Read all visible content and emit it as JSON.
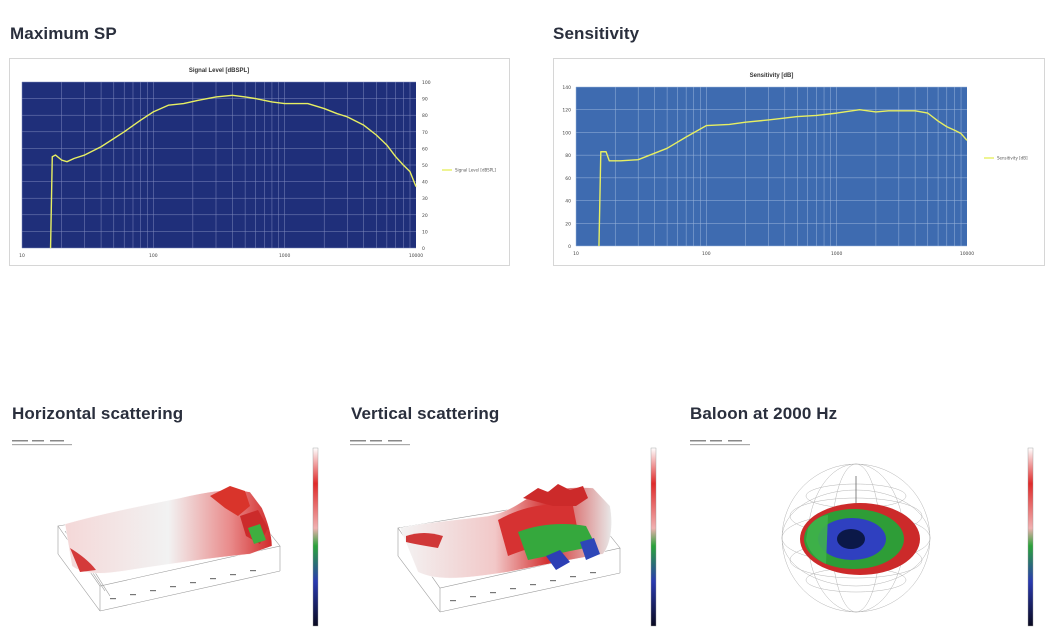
{
  "sections": {
    "max_sp": "Maximum SP",
    "sensitivity": "Sensitivity",
    "horizontal": "Horizontal scattering",
    "vertical": "Vertical scattering",
    "balloon": "Baloon at 2000 Hz"
  },
  "chart_data": [
    {
      "type": "line",
      "title": "Signal Level [dBSPL]",
      "legend": "Signal Level [dBSPL]",
      "legend_position": "right",
      "x_scale": "log",
      "xlim": [
        10,
        10000
      ],
      "x_ticks": [
        "10",
        "100",
        "1000",
        "10000"
      ],
      "ylim": [
        0,
        100
      ],
      "y_ticks": [
        "0",
        "10",
        "20",
        "30",
        "40",
        "50",
        "60",
        "70",
        "80",
        "90",
        "100"
      ],
      "grid": true,
      "colors": {
        "plot_bg": "#1f2f7a",
        "grid": "#7f89bd",
        "line": "#e7ef62"
      },
      "series": [
        {
          "name": "Signal Level [dBSPL]",
          "x": [
            16.5,
            17,
            18,
            20,
            22,
            25,
            30,
            40,
            60,
            80,
            100,
            130,
            170,
            220,
            300,
            400,
            500,
            600,
            800,
            1000,
            1500,
            2000,
            2500,
            3000,
            4000,
            5000,
            6000,
            7000,
            8000,
            9000,
            10000
          ],
          "y": [
            0,
            55,
            56,
            53,
            52,
            54,
            56,
            61,
            70,
            77,
            82,
            86,
            87,
            89,
            91,
            92,
            91,
            90,
            88,
            87,
            87,
            84,
            81,
            79,
            74,
            68,
            62,
            55,
            50,
            46,
            37
          ]
        }
      ]
    },
    {
      "type": "line",
      "title": "Sensitivity [dB]",
      "legend": "Sensitivity [dB]",
      "legend_position": "right",
      "x_scale": "log",
      "xlim": [
        10,
        10000
      ],
      "x_ticks": [
        "10",
        "100",
        "1000",
        "10000"
      ],
      "ylim": [
        0,
        140
      ],
      "y_ticks": [
        "0",
        "20",
        "40",
        "60",
        "80",
        "100",
        "120",
        "140"
      ],
      "grid": true,
      "colors": {
        "plot_bg": "#3e6bb0",
        "grid": "#9cb6dc",
        "line": "#e7ef62"
      },
      "series": [
        {
          "name": "Sensitivity [dB]",
          "x": [
            15,
            15.5,
            16,
            17,
            18,
            20,
            22,
            30,
            50,
            70,
            100,
            150,
            200,
            300,
            500,
            700,
            1000,
            1500,
            2000,
            2500,
            3000,
            4000,
            5000,
            6000,
            7000,
            8000,
            9000,
            10000
          ],
          "y": [
            0,
            83,
            83,
            83,
            75,
            75,
            75,
            76,
            86,
            96,
            106,
            107,
            109,
            111,
            114,
            115,
            117,
            120,
            118,
            119,
            119,
            119,
            117,
            110,
            105,
            102,
            99,
            93
          ]
        }
      ]
    }
  ],
  "panels": {
    "horizontal_caption": "Horizontal scattering plot",
    "vertical_caption": "Vertical scattering plot",
    "balloon_caption": "Balloon plot"
  }
}
